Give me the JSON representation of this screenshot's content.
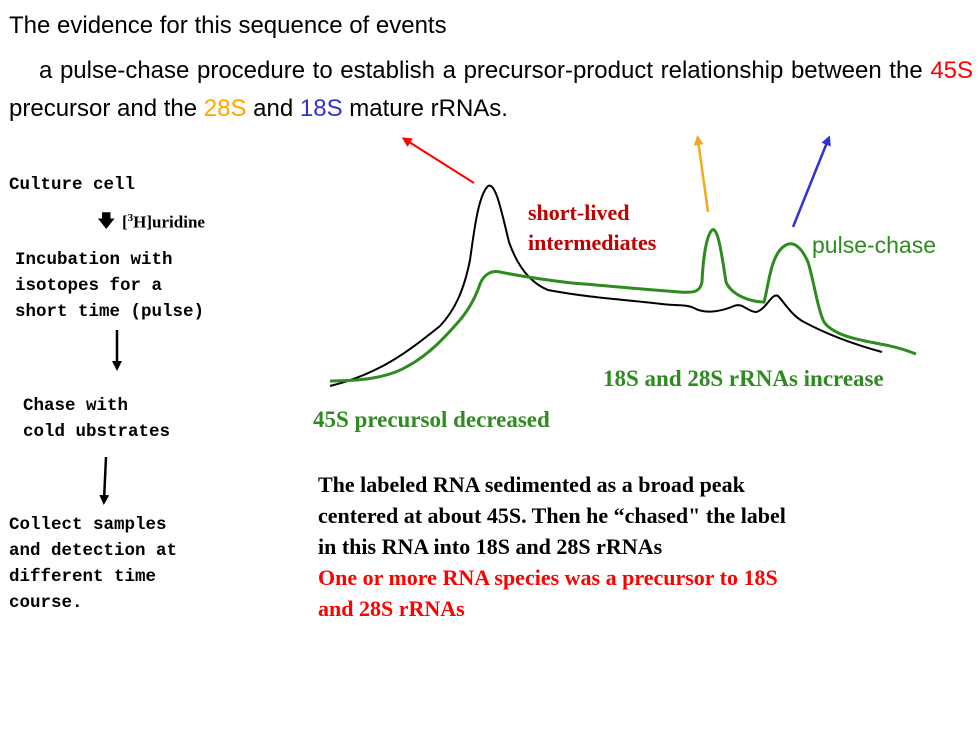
{
  "title": "The evidence for this sequence of events",
  "intro": {
    "part1": "a pulse-chase procedure to establish a precursor-product relationship between the",
    "s45": "45S",
    "part2": "precursor and the",
    "s28": "28S",
    "part3": "and",
    "s18": "18S",
    "part4": "mature rRNAs."
  },
  "flow": {
    "step1": "Culture cell",
    "uridine_bracket_open": "[",
    "uridine_sup": "3",
    "uridine_rest": "H]uridine",
    "step2": [
      "Incubation with",
      "isotopes for a",
      "short time (pulse)"
    ],
    "step3": [
      "Chase with",
      "cold ubstrates"
    ],
    "step4": [
      "Collect samples",
      "and detection at",
      "different time",
      "course."
    ]
  },
  "graph_labels": {
    "intermediates": [
      "short-lived",
      "intermediates"
    ],
    "pulse_chase": "pulse-chase",
    "increase": "18S and 28S rRNAs increase",
    "decreased": "45S precursol decreased"
  },
  "caption": {
    "black": [
      "The labeled RNA sedimented as a broad peak",
      "centered at about 45S. Then he “chased\" the label",
      "in this RNA into 18S and 28S rRNAs"
    ],
    "red": [
      "One or more RNA species was a precursor to 18S",
      "and 28S rRNAs"
    ]
  },
  "colors": {
    "s45": "#ff0000",
    "s28": "#ffa500",
    "s18": "#3333cc",
    "green": "#2e8b1f",
    "darkred": "#c00000"
  }
}
